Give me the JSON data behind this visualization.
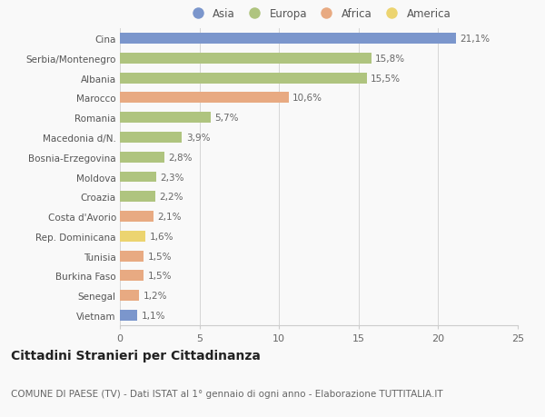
{
  "categories": [
    "Vietnam",
    "Senegal",
    "Burkina Faso",
    "Tunisia",
    "Rep. Dominicana",
    "Costa d'Avorio",
    "Croazia",
    "Moldova",
    "Bosnia-Erzegovina",
    "Macedonia d/N.",
    "Romania",
    "Marocco",
    "Albania",
    "Serbia/Montenegro",
    "Cina"
  ],
  "values": [
    1.1,
    1.2,
    1.5,
    1.5,
    1.6,
    2.1,
    2.2,
    2.3,
    2.8,
    3.9,
    5.7,
    10.6,
    15.5,
    15.8,
    21.1
  ],
  "continents": [
    "Asia",
    "Africa",
    "Africa",
    "Africa",
    "America",
    "Africa",
    "Europa",
    "Europa",
    "Europa",
    "Europa",
    "Europa",
    "Africa",
    "Europa",
    "Europa",
    "Asia"
  ],
  "colors": {
    "Asia": "#7b96cc",
    "Europa": "#afc47f",
    "Africa": "#e8aa82",
    "America": "#ecd470"
  },
  "legend_order": [
    "Asia",
    "Europa",
    "Africa",
    "America"
  ],
  "xlim": [
    0,
    25
  ],
  "xticks": [
    0,
    5,
    10,
    15,
    20,
    25
  ],
  "title": "Cittadini Stranieri per Cittadinanza",
  "subtitle": "COMUNE DI PAESE (TV) - Dati ISTAT al 1° gennaio di ogni anno - Elaborazione TUTTITALIA.IT",
  "background_color": "#f9f9f9",
  "bar_height": 0.55,
  "label_fontsize": 7.5,
  "value_fontsize": 7.5,
  "title_fontsize": 10,
  "subtitle_fontsize": 7.5
}
